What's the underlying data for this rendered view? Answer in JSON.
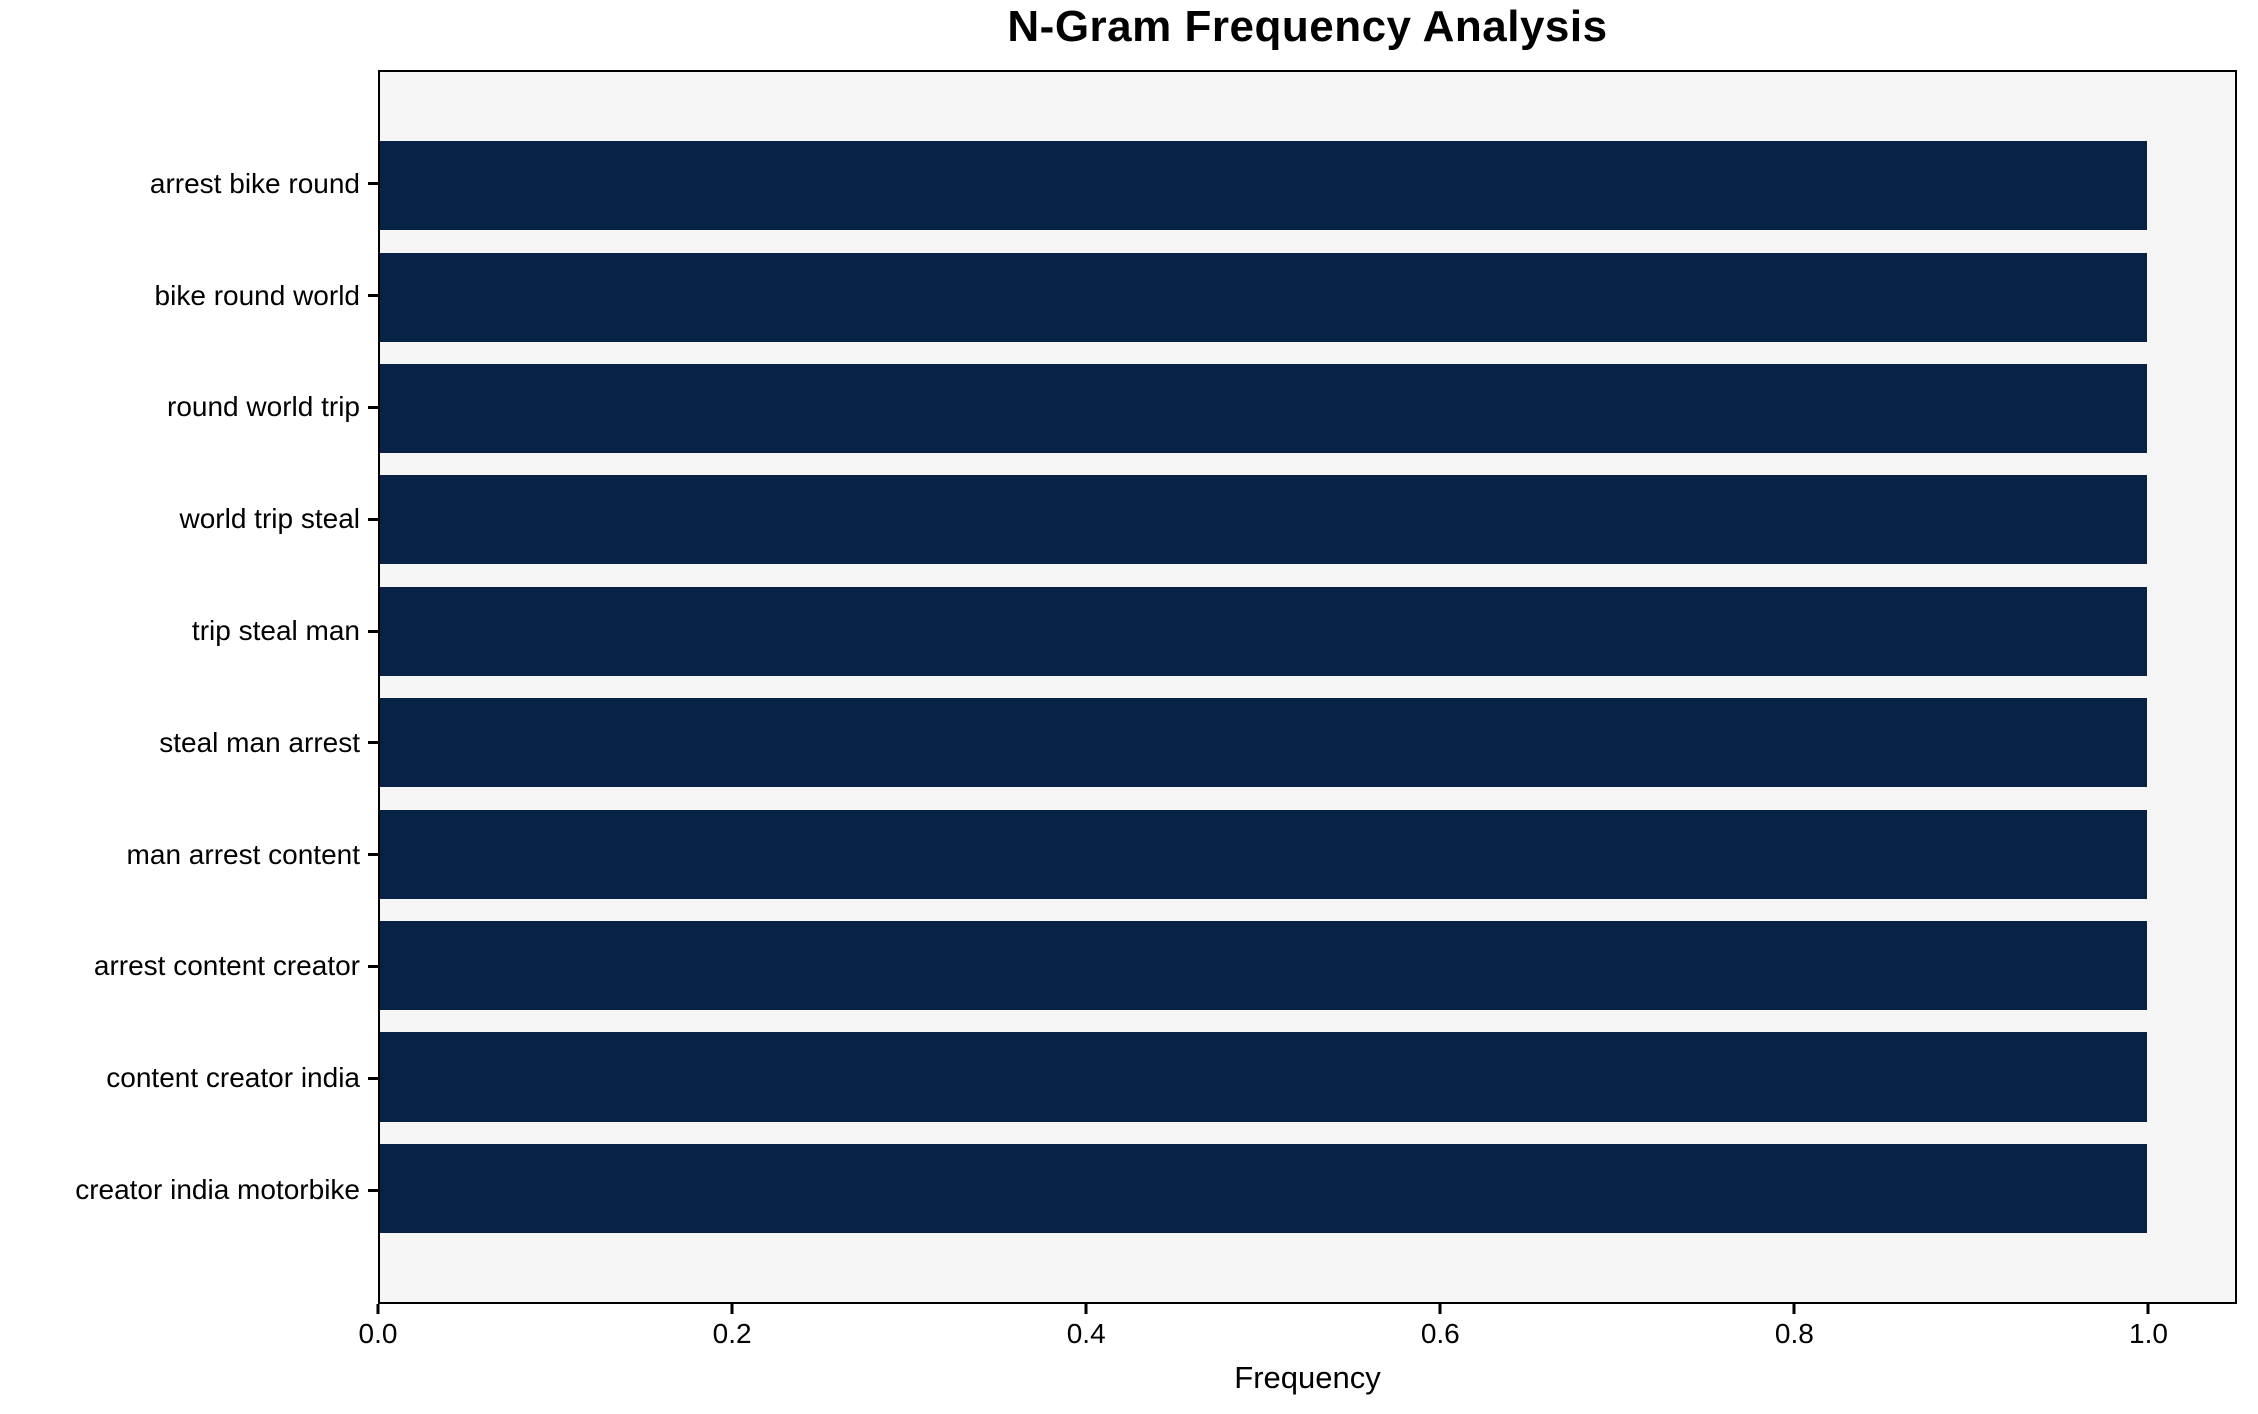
{
  "chart_data": {
    "type": "bar",
    "orientation": "horizontal",
    "title": "N-Gram Frequency Analysis",
    "xlabel": "Frequency",
    "ylabel": "",
    "categories": [
      "arrest bike round",
      "bike round world",
      "round world trip",
      "world trip steal",
      "trip steal man",
      "steal man arrest",
      "man arrest content",
      "arrest content creator",
      "content creator india",
      "creator india motorbike"
    ],
    "values": [
      1.0,
      1.0,
      1.0,
      1.0,
      1.0,
      1.0,
      1.0,
      1.0,
      1.0,
      1.0
    ],
    "xticks": [
      0.0,
      0.2,
      0.4,
      0.6,
      0.8,
      1.0
    ],
    "xtick_labels": [
      "0.0",
      "0.2",
      "0.4",
      "0.6",
      "0.8",
      "1.0"
    ],
    "xlim": [
      0,
      1.05
    ],
    "grid": false,
    "colors": {
      "bar": "#082246",
      "plot_background": "#f5f5f6",
      "figure_background": "#ffffff",
      "axis": "#000000",
      "text": "#000000"
    }
  }
}
